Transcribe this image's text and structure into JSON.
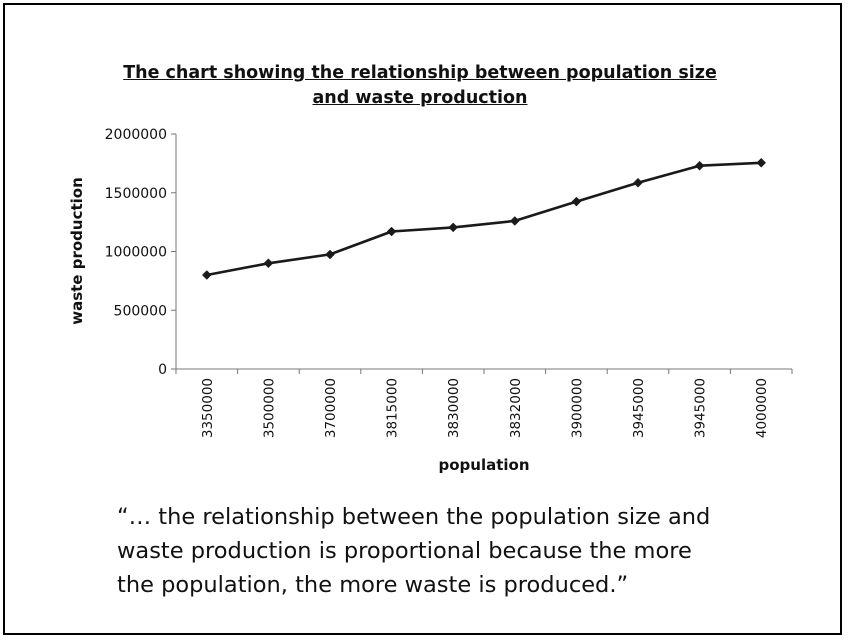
{
  "chart_data": {
    "type": "line",
    "title_line1": "The chart showing the relationship between population size",
    "title_line2": "and waste production",
    "xlabel": "population",
    "ylabel": "waste production",
    "categories": [
      "3350000",
      "3500000",
      "3700000",
      "3815000",
      "3830000",
      "3832000",
      "3900000",
      "3945000",
      "3945000",
      "4000000"
    ],
    "values": [
      800000,
      900000,
      975000,
      1170000,
      1205000,
      1260000,
      1425000,
      1585000,
      1730000,
      1755000
    ],
    "yticks": [
      "0",
      "500000",
      "1000000",
      "1500000",
      "2000000"
    ],
    "ylim": [
      0,
      2000000
    ],
    "grid": false,
    "legend": "none",
    "line_color": "#1a1a1a",
    "marker": "diamond"
  },
  "quote": {
    "line1": "“… the relationship between the population size and",
    "line2": "waste production is proportional because the more",
    "line3": "the population, the more waste is produced.”"
  }
}
